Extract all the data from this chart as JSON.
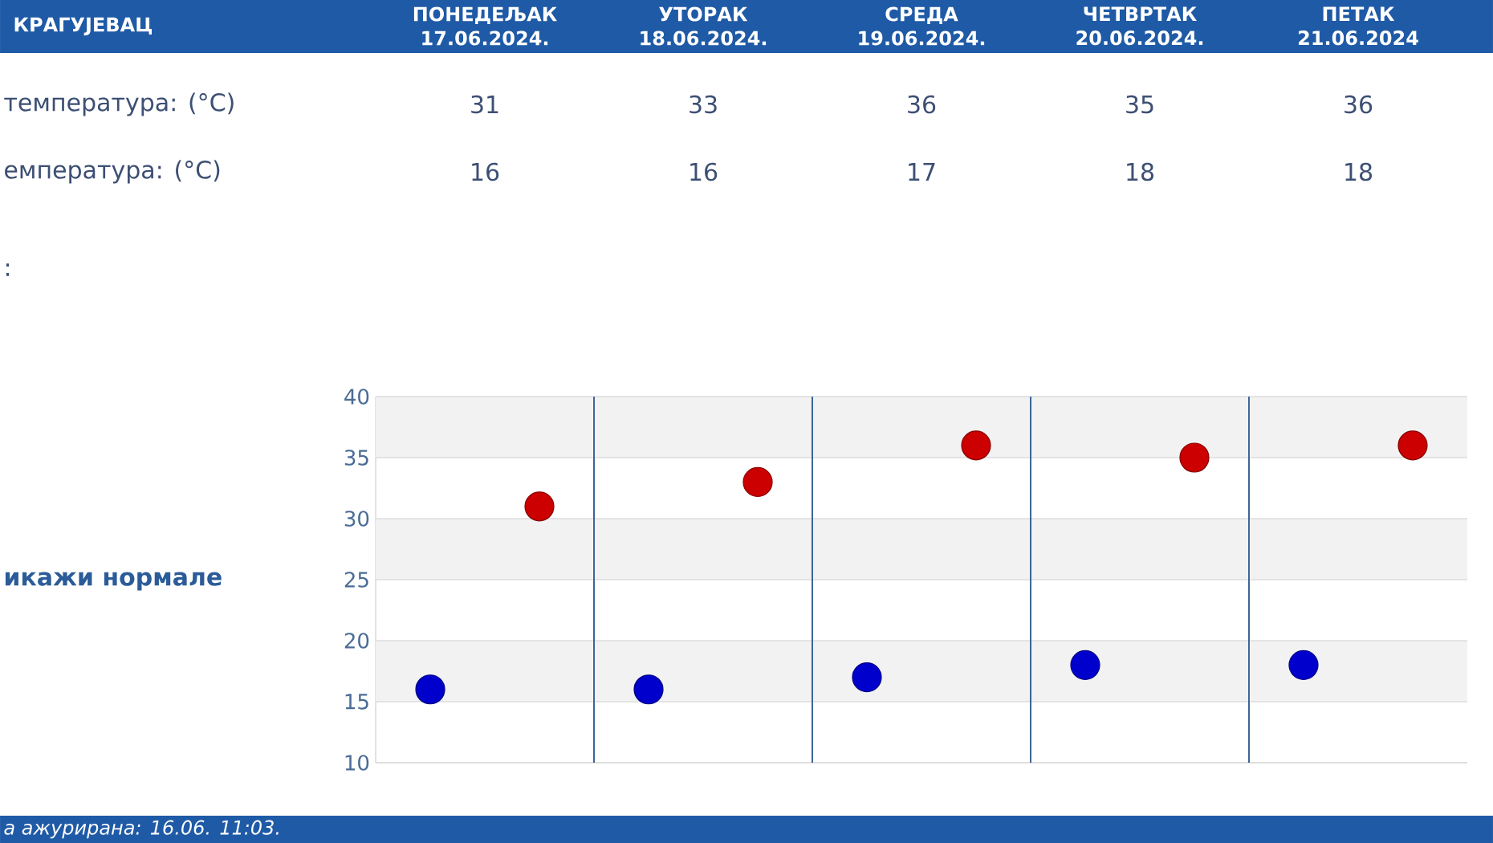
{
  "chart_data": {
    "type": "scatter",
    "title": "КРАГУЈЕВАЦ",
    "categories": [
      null,
      null,
      null,
      null,
      null
    ],
    "series": [
      {
        "color": "#cc0000",
        "values": [
          31,
          33,
          36,
          35,
          36
        ]
      },
      {
        "color": "#0000cc",
        "values": [
          16,
          16,
          17,
          18,
          18
        ]
      }
    ],
    "ylim": [
      10,
      40
    ],
    "yticks": [
      10,
      15,
      20,
      25,
      30,
      35,
      40
    ],
    "tick_labels": "y",
    "grid": true,
    "marker": "circle",
    "data_labels": true,
    "bands": [
      {
        "axis": "y",
        "from": 35,
        "to": 40,
        "color": "#f2f2f2"
      },
      {
        "axis": "y",
        "from": 25,
        "to": 30,
        "color": "#f2f2f2"
      },
      {
        "axis": "y",
        "from": 15,
        "to": 20,
        "color": "#f2f2f2"
      }
    ],
    "annotations": [
      "ПОНЕДЕЉАК 17.06.2024.",
      "УТОРАК 18.06.2024.",
      "СРЕДА 19.06.2024.",
      "ЧЕТВРТАК 20.06.2024.",
      "ПЕТАК 21.06.2024",
      "температура: (°C)",
      "емпература: (°C)",
      ":",
      "икажи нормале",
      "а ажурирана: 16.06. 11:03."
    ]
  }
}
